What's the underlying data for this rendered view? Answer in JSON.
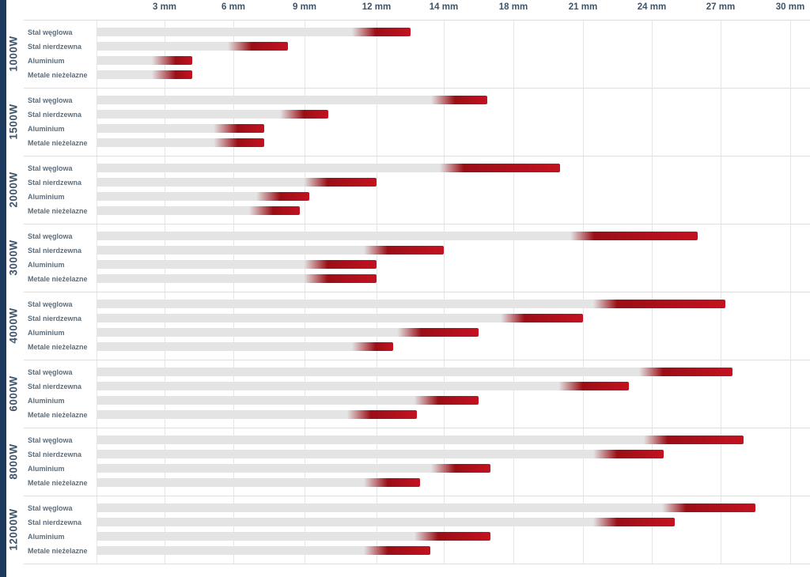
{
  "colors": {
    "accent_strip": "#1c3a5e",
    "bar_gray": "#e4e4e4",
    "red_dark": "#9a0e16",
    "red": "#c3121f",
    "grid": "#e4e6e8",
    "separator": "#dde0e3",
    "tick_text": "#3d5469",
    "power_text": "#3e556b",
    "material_text": "#5c6e7e"
  },
  "chart_data": {
    "type": "bar",
    "orientation": "horizontal",
    "unit": "mm",
    "title": "",
    "xlim_mm": [
      0,
      30
    ],
    "grid": true,
    "x_ticks_mm": [
      3,
      6,
      9,
      12,
      14,
      18,
      21,
      24,
      27,
      30
    ],
    "x_tick_labels": [
      "3 mm",
      "6 mm",
      "9 mm",
      "12 mm",
      "14 mm",
      "18 mm",
      "21 mm",
      "24 mm",
      "27 mm",
      "30 mm"
    ],
    "materials": [
      "Stal węglowa",
      "Stal nierdzewna",
      "Aluminium",
      "Metale nieżelazne"
    ],
    "bar_semantics": "gray = cutting range, red tip = upper thickness limit (red_from_mm to max_mm)",
    "groups": [
      {
        "power": "1000W",
        "rows": [
          {
            "material": "Stal węglowa",
            "red_from_mm": 11.5,
            "max_mm": 13
          },
          {
            "material": "Stal nierdzewna",
            "red_from_mm": 6.3,
            "max_mm": 8.3
          },
          {
            "material": "Aluminium",
            "red_from_mm": 3,
            "max_mm": 4.2
          },
          {
            "material": "Metale nieżelazne",
            "red_from_mm": 3,
            "max_mm": 4.2
          }
        ]
      },
      {
        "power": "1500W",
        "rows": [
          {
            "material": "Stal węglowa",
            "red_from_mm": 14,
            "max_mm": 16.5
          },
          {
            "material": "Stal nierdzewna",
            "red_from_mm": 8.5,
            "max_mm": 10
          },
          {
            "material": "Aluminium",
            "red_from_mm": 5.7,
            "max_mm": 7.3
          },
          {
            "material": "Metale nieżelazne",
            "red_from_mm": 5.7,
            "max_mm": 7.3
          }
        ]
      },
      {
        "power": "2000W",
        "rows": [
          {
            "material": "Stal węglowa",
            "red_from_mm": 14.5,
            "max_mm": 20
          },
          {
            "material": "Stal nierdzewna",
            "red_from_mm": 9.5,
            "max_mm": 12
          },
          {
            "material": "Aluminium",
            "red_from_mm": 7.5,
            "max_mm": 9.2
          },
          {
            "material": "Metale nieżelazne",
            "red_from_mm": 7.2,
            "max_mm": 8.8
          }
        ]
      },
      {
        "power": "3000W",
        "rows": [
          {
            "material": "Stal węglowa",
            "red_from_mm": 21,
            "max_mm": 26
          },
          {
            "material": "Stal nierdzewna",
            "red_from_mm": 12,
            "max_mm": 14
          },
          {
            "material": "Aluminium",
            "red_from_mm": 9.5,
            "max_mm": 12
          },
          {
            "material": "Metale nieżelazne",
            "red_from_mm": 9.5,
            "max_mm": 12
          }
        ]
      },
      {
        "power": "4000W",
        "rows": [
          {
            "material": "Stal węglowa",
            "red_from_mm": 22,
            "max_mm": 27.2
          },
          {
            "material": "Stal nierdzewna",
            "red_from_mm": 18,
            "max_mm": 21
          },
          {
            "material": "Aluminium",
            "red_from_mm": 13,
            "max_mm": 16
          },
          {
            "material": "Metale nieżelazne",
            "red_from_mm": 11.5,
            "max_mm": 12.5
          }
        ]
      },
      {
        "power": "6000W",
        "rows": [
          {
            "material": "Stal węglowa",
            "red_from_mm": 24,
            "max_mm": 27.5
          },
          {
            "material": "Stal nierdzewna",
            "red_from_mm": 20.5,
            "max_mm": 23
          },
          {
            "material": "Aluminium",
            "red_from_mm": 13.5,
            "max_mm": 16
          },
          {
            "material": "Metale nieżelazne",
            "red_from_mm": 11.3,
            "max_mm": 13.2
          }
        ]
      },
      {
        "power": "8000W",
        "rows": [
          {
            "material": "Stal węglowa",
            "red_from_mm": 24.2,
            "max_mm": 28
          },
          {
            "material": "Stal nierdzewna",
            "red_from_mm": 22,
            "max_mm": 24.5
          },
          {
            "material": "Aluminium",
            "red_from_mm": 14,
            "max_mm": 16.7
          },
          {
            "material": "Metale nieżelazne",
            "red_from_mm": 12,
            "max_mm": 13.3
          }
        ]
      },
      {
        "power": "12000W",
        "rows": [
          {
            "material": "Stal węglowa",
            "red_from_mm": 25,
            "max_mm": 28.5
          },
          {
            "material": "Stal nierdzewna",
            "red_from_mm": 22,
            "max_mm": 25
          },
          {
            "material": "Aluminium",
            "red_from_mm": 13.5,
            "max_mm": 16.7
          },
          {
            "material": "Metale nieżelazne",
            "red_from_mm": 12,
            "max_mm": 13.6
          }
        ]
      }
    ]
  }
}
